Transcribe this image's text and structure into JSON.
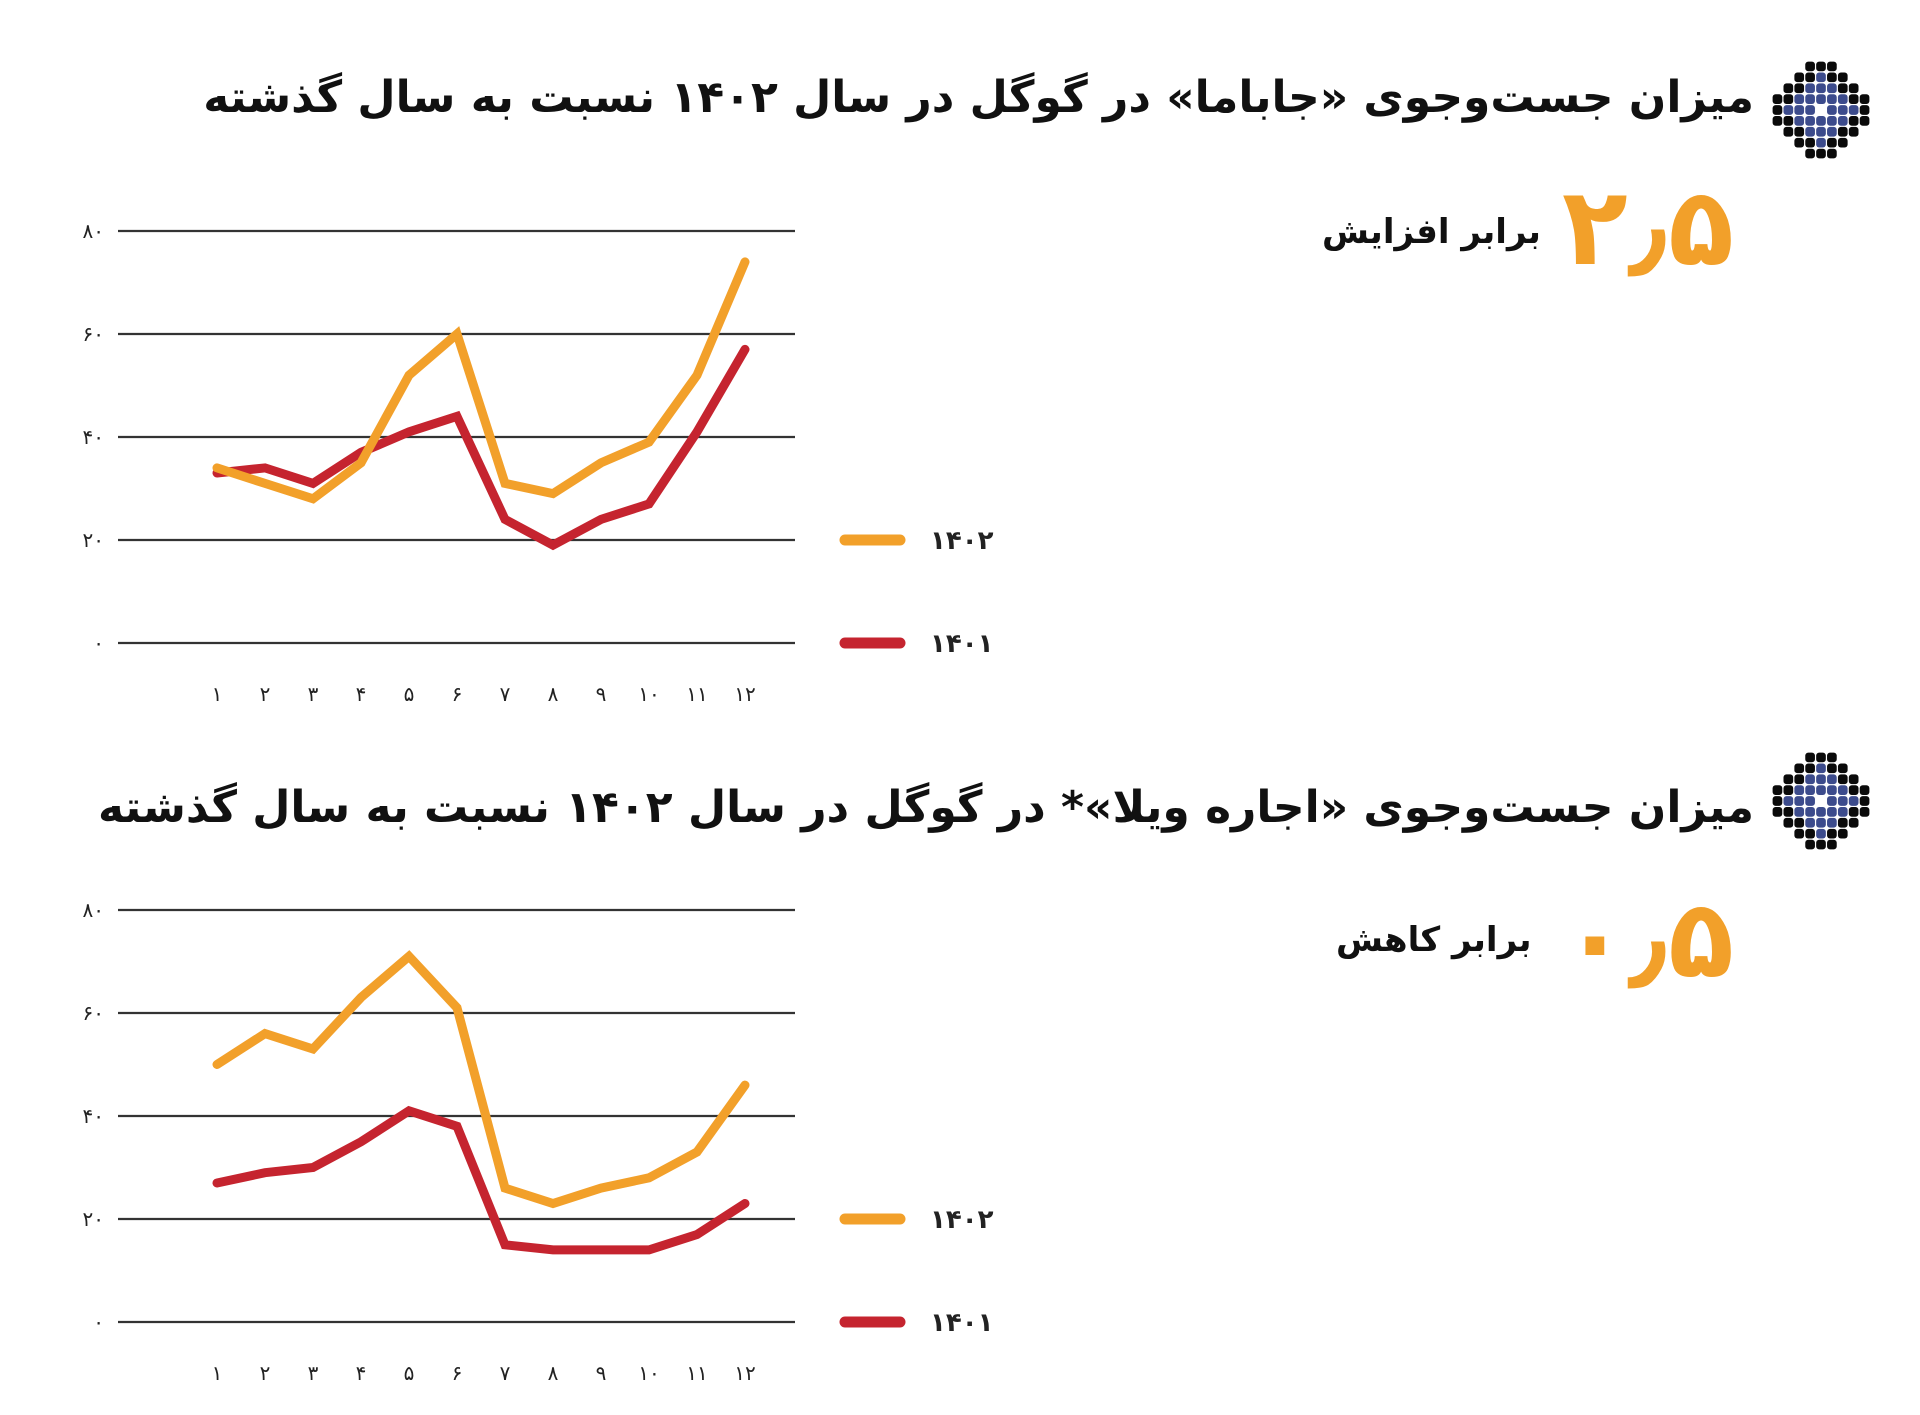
{
  "colors": {
    "series_1402": "#f2a02a",
    "series_1401": "#c5242f",
    "grid": "#333333",
    "icon_dark": "#0a0a0a",
    "icon_blue": "#3c4b8c",
    "highlight": "#f2a02a"
  },
  "sections": [
    {
      "title": "میزان جست‌وجوی «جاباما» در گوگل در سال ۱۴۰۲ نسبت به سال گذشته",
      "icon": "decorative-diamond-pattern-icon",
      "stat_value": "۲٫۵",
      "stat_label": "برابر افزایش"
    },
    {
      "title": "میزان جست‌وجوی «اجاره ویلا»* در گوگل در سال ۱۴۰۲ نسبت به سال گذشته",
      "icon": "decorative-diamond-pattern-icon",
      "stat_value": "۰٫۵",
      "stat_label": "برابر کاهش"
    }
  ],
  "chart_data": [
    {
      "type": "line",
      "title": "میزان جست‌وجوی «جاباما» در گوگل در سال ۱۴۰۲ نسبت به سال گذشته",
      "x": [
        1,
        2,
        3,
        4,
        5,
        6,
        7,
        8,
        9,
        10,
        11,
        12
      ],
      "x_tick_labels": [
        "۱",
        "۲",
        "۳",
        "۴",
        "۵",
        "۶",
        "۷",
        "۸",
        "۹",
        "۱۰",
        "۱۱",
        "۱۲"
      ],
      "y_ticks": [
        0,
        20,
        40,
        60,
        80
      ],
      "y_tick_labels": [
        "۰",
        "۲۰",
        "۴۰",
        "۶۰",
        "۸۰"
      ],
      "ylim": [
        0,
        80
      ],
      "xlabel": "",
      "ylabel": "",
      "grid": true,
      "legend_position": "right",
      "series": [
        {
          "name": "۱۴۰۲",
          "color": "#f2a02a",
          "values": [
            34,
            31,
            28,
            35,
            52,
            60,
            31,
            29,
            35,
            39,
            52,
            74
          ]
        },
        {
          "name": "۱۴۰۱",
          "color": "#c5242f",
          "values": [
            33,
            34,
            31,
            37,
            41,
            44,
            24,
            19,
            24,
            27,
            41,
            57
          ]
        }
      ],
      "annotation": {
        "value": "۲٫۵",
        "label": "برابر افزایش"
      }
    },
    {
      "type": "line",
      "title": "میزان جست‌وجوی «اجاره ویلا»* در گوگل در سال ۱۴۰۲ نسبت به سال گذشته",
      "x": [
        1,
        2,
        3,
        4,
        5,
        6,
        7,
        8,
        9,
        10,
        11,
        12
      ],
      "x_tick_labels": [
        "۱",
        "۲",
        "۳",
        "۴",
        "۵",
        "۶",
        "۷",
        "۸",
        "۹",
        "۱۰",
        "۱۱",
        "۱۲"
      ],
      "y_ticks": [
        0,
        20,
        40,
        60,
        80
      ],
      "y_tick_labels": [
        "۰",
        "۲۰",
        "۴۰",
        "۶۰",
        "۸۰"
      ],
      "ylim": [
        0,
        80
      ],
      "xlabel": "",
      "ylabel": "",
      "grid": true,
      "legend_position": "right",
      "series": [
        {
          "name": "۱۴۰۲",
          "color": "#f2a02a",
          "values": [
            50,
            56,
            53,
            63,
            71,
            61,
            26,
            23,
            26,
            28,
            33,
            46
          ]
        },
        {
          "name": "۱۴۰۱",
          "color": "#c5242f",
          "values": [
            27,
            29,
            30,
            35,
            41,
            38,
            15,
            14,
            14,
            14,
            17,
            23
          ]
        }
      ],
      "annotation": {
        "value": "۰٫۵",
        "label": "برابر کاهش"
      }
    }
  ]
}
